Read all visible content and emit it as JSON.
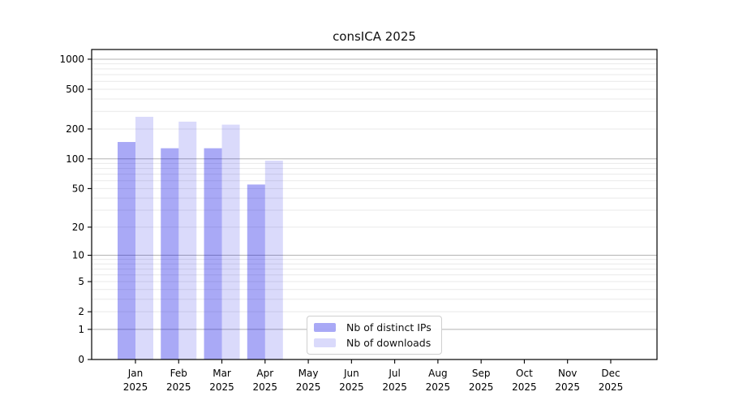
{
  "chart_data": {
    "type": "bar",
    "title": "consICA 2025",
    "categories": [
      "Jan",
      "Feb",
      "Mar",
      "Apr",
      "May",
      "Jun",
      "Jul",
      "Aug",
      "Sep",
      "Oct",
      "Nov",
      "Dec"
    ],
    "x_year_label": "2025",
    "series": [
      {
        "name": "Nb of distinct IPs",
        "color": "rgba(10,10,230,0.35)",
        "values": [
          148,
          128,
          128,
          55,
          0,
          0,
          0,
          0,
          0,
          0,
          0,
          0
        ]
      },
      {
        "name": "Nb of downloads",
        "color": "rgba(10,10,230,0.15)",
        "values": [
          265,
          237,
          221,
          96,
          0,
          0,
          0,
          0,
          0,
          0,
          0,
          0
        ]
      }
    ],
    "xlabel": "",
    "ylabel": "",
    "y_scale": "log1p",
    "y_ticks": [
      0,
      1,
      2,
      5,
      10,
      20,
      50,
      100,
      200,
      500,
      1000
    ],
    "ylim": [
      0,
      1250
    ],
    "grid": {
      "on": true,
      "major_values": [
        1,
        10,
        100,
        1000
      ],
      "minor_values": [
        2,
        3,
        4,
        5,
        6,
        7,
        8,
        9,
        20,
        30,
        40,
        50,
        60,
        70,
        80,
        90,
        200,
        300,
        400,
        500,
        600,
        700,
        800,
        900
      ],
      "major_color": "#b3b3b3",
      "minor_color": "#e9e9e9"
    },
    "legend": {
      "position": "bottom-center",
      "border_color": "#cfcfcf"
    },
    "frame_color": "#000000",
    "tick_label_color": "#000000"
  }
}
